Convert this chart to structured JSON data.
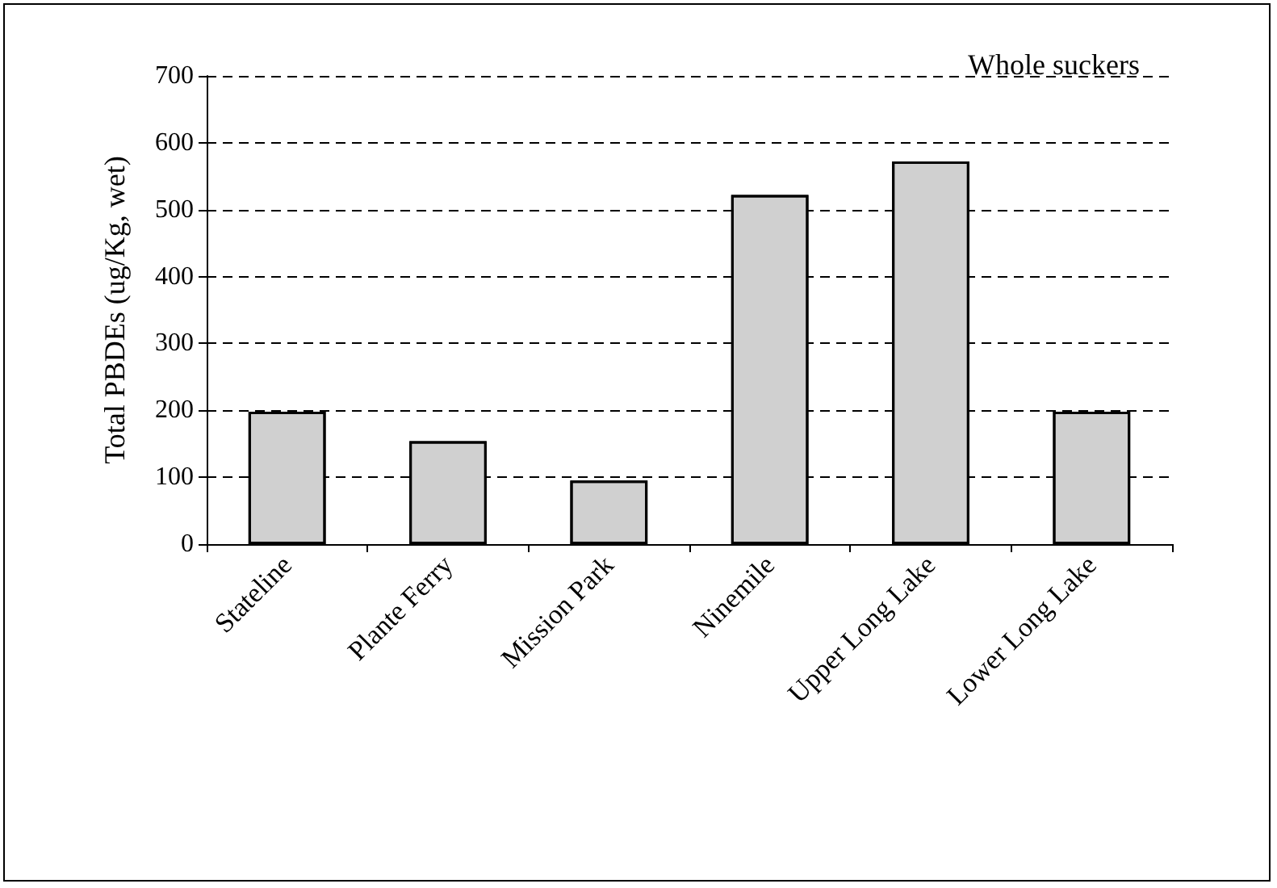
{
  "chart_data": {
    "type": "bar",
    "ylabel": "Total PBDEs (ug/Kg, wet)",
    "annotations": [
      "Whole suckers"
    ],
    "categories": [
      "Stateline",
      "Plante Ferry",
      "Mission Park",
      "Ninemile",
      "Upper Long Lake",
      "Lower Long Lake"
    ],
    "values": [
      198,
      154,
      95,
      522,
      572,
      198
    ],
    "color": "#d0d0d0",
    "ylim": [
      0,
      700
    ],
    "yticks": [
      0,
      100,
      200,
      300,
      400,
      500,
      600,
      700
    ],
    "grid": "y"
  }
}
